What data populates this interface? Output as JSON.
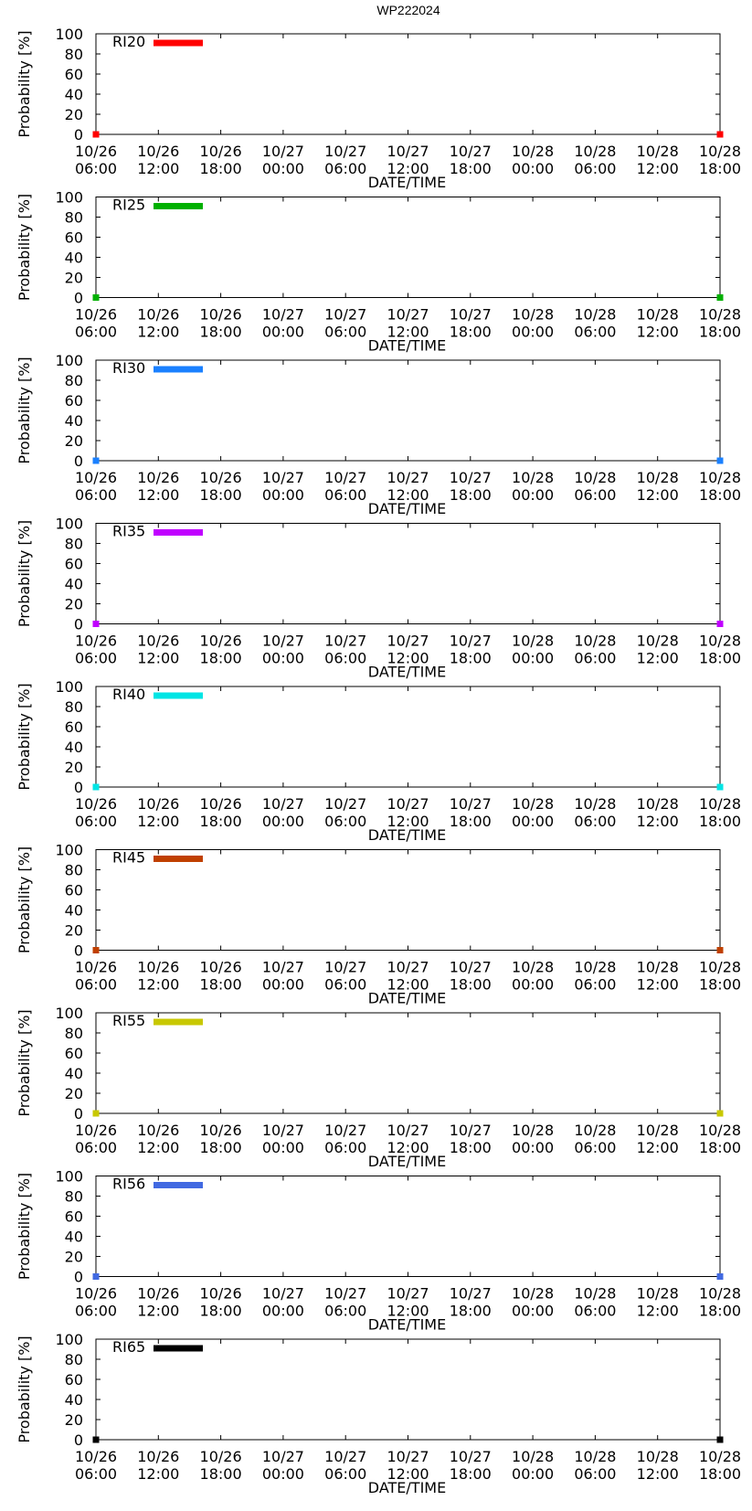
{
  "title": "WP222024",
  "xlabel": "DATE/TIME",
  "ylabel": "Probability [%]",
  "yticks": [
    "0",
    "20",
    "40",
    "60",
    "80",
    "100"
  ],
  "xticks": [
    {
      "date": "10/26",
      "time": "06:00"
    },
    {
      "date": "10/26",
      "time": "12:00"
    },
    {
      "date": "10/26",
      "time": "18:00"
    },
    {
      "date": "10/27",
      "time": "00:00"
    },
    {
      "date": "10/27",
      "time": "06:00"
    },
    {
      "date": "10/27",
      "time": "12:00"
    },
    {
      "date": "10/27",
      "time": "18:00"
    },
    {
      "date": "10/28",
      "time": "00:00"
    },
    {
      "date": "10/28",
      "time": "06:00"
    },
    {
      "date": "10/28",
      "time": "12:00"
    },
    {
      "date": "10/28",
      "time": "18:00"
    }
  ],
  "chart_data": [
    {
      "type": "line",
      "series_name": "RI20",
      "color": "#ff0000",
      "x": [
        "10/26 06:00",
        "10/28 18:00"
      ],
      "y": [
        0,
        0
      ],
      "xlim": [
        "10/26 06:00",
        "10/28 18:00"
      ],
      "ylim": [
        0,
        100
      ],
      "xlabel": "DATE/TIME",
      "ylabel": "Probability [%]",
      "legend": "top-left"
    },
    {
      "type": "line",
      "series_name": "RI25",
      "color": "#00b000",
      "x": [
        "10/26 06:00",
        "10/28 18:00"
      ],
      "y": [
        0,
        0
      ],
      "xlim": [
        "10/26 06:00",
        "10/28 18:00"
      ],
      "ylim": [
        0,
        100
      ],
      "xlabel": "DATE/TIME",
      "ylabel": "Probability [%]",
      "legend": "top-left"
    },
    {
      "type": "line",
      "series_name": "RI30",
      "color": "#1a80ff",
      "x": [
        "10/26 06:00",
        "10/28 18:00"
      ],
      "y": [
        0,
        0
      ],
      "xlim": [
        "10/26 06:00",
        "10/28 18:00"
      ],
      "ylim": [
        0,
        100
      ],
      "xlabel": "DATE/TIME",
      "ylabel": "Probability [%]",
      "legend": "top-left"
    },
    {
      "type": "line",
      "series_name": "RI35",
      "color": "#c000ff",
      "x": [
        "10/26 06:00",
        "10/28 18:00"
      ],
      "y": [
        0,
        0
      ],
      "xlim": [
        "10/26 06:00",
        "10/28 18:00"
      ],
      "ylim": [
        0,
        100
      ],
      "xlabel": "DATE/TIME",
      "ylabel": "Probability [%]",
      "legend": "top-left"
    },
    {
      "type": "line",
      "series_name": "RI40",
      "color": "#00e5e5",
      "x": [
        "10/26 06:00",
        "10/28 18:00"
      ],
      "y": [
        0,
        0
      ],
      "xlim": [
        "10/26 06:00",
        "10/28 18:00"
      ],
      "ylim": [
        0,
        100
      ],
      "xlabel": "DATE/TIME",
      "ylabel": "Probability [%]",
      "legend": "top-left"
    },
    {
      "type": "line",
      "series_name": "RI45",
      "color": "#c04000",
      "x": [
        "10/26 06:00",
        "10/28 18:00"
      ],
      "y": [
        0,
        0
      ],
      "xlim": [
        "10/26 06:00",
        "10/28 18:00"
      ],
      "ylim": [
        0,
        100
      ],
      "xlabel": "DATE/TIME",
      "ylabel": "Probability [%]",
      "legend": "top-left"
    },
    {
      "type": "line",
      "series_name": "RI55",
      "color": "#c8c800",
      "x": [
        "10/26 06:00",
        "10/28 18:00"
      ],
      "y": [
        0,
        0
      ],
      "xlim": [
        "10/26 06:00",
        "10/28 18:00"
      ],
      "ylim": [
        0,
        100
      ],
      "xlabel": "DATE/TIME",
      "ylabel": "Probability [%]",
      "legend": "top-left"
    },
    {
      "type": "line",
      "series_name": "RI56",
      "color": "#4169e1",
      "x": [
        "10/26 06:00",
        "10/28 18:00"
      ],
      "y": [
        0,
        0
      ],
      "xlim": [
        "10/26 06:00",
        "10/28 18:00"
      ],
      "ylim": [
        0,
        100
      ],
      "xlabel": "DATE/TIME",
      "ylabel": "Probability [%]",
      "legend": "top-left"
    },
    {
      "type": "line",
      "series_name": "RI65",
      "color": "#000000",
      "x": [
        "10/26 06:00",
        "10/28 18:00"
      ],
      "y": [
        0,
        0
      ],
      "xlim": [
        "10/26 06:00",
        "10/28 18:00"
      ],
      "ylim": [
        0,
        100
      ],
      "xlabel": "DATE/TIME",
      "ylabel": "Probability [%]",
      "legend": "top-left"
    }
  ]
}
